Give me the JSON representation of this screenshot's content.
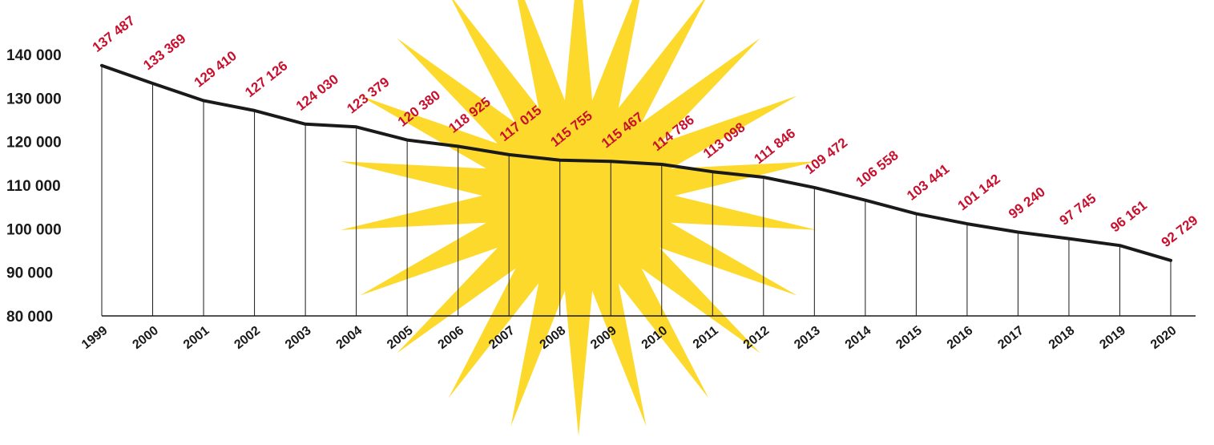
{
  "chart_data": {
    "type": "line",
    "x": [
      "1999",
      "2000",
      "2001",
      "2002",
      "2003",
      "2004",
      "2005",
      "2006",
      "2007",
      "2008",
      "2009",
      "2010",
      "2011",
      "2012",
      "2013",
      "2014",
      "2015",
      "2016",
      "2017",
      "2018",
      "2019",
      "2020"
    ],
    "values": [
      137487,
      133369,
      129410,
      127126,
      124030,
      123379,
      120380,
      118925,
      117015,
      115755,
      115467,
      114786,
      113098,
      111846,
      109472,
      106558,
      103441,
      101142,
      99240,
      97745,
      96161,
      92729
    ],
    "data_labels": [
      "137 487",
      "133 369",
      "129 410",
      "127 126",
      "124 030",
      "123 379",
      "120 380",
      "118 925",
      "117 015",
      "115 755",
      "115 467",
      "114 786",
      "113 098",
      "111 846",
      "109 472",
      "106 558",
      "103 441",
      "101 142",
      "99 240",
      "97 745",
      "96 161",
      "92 729"
    ],
    "yticks": [
      "80 000",
      "90 000",
      "100 000",
      "110 000",
      "120 000",
      "130 000",
      "140 000"
    ],
    "ytick_values": [
      80000,
      90000,
      100000,
      110000,
      120000,
      130000,
      140000
    ],
    "ylim": [
      80000,
      140000
    ],
    "grid": false,
    "legend": "none",
    "title": "",
    "xlabel": "",
    "ylabel": "",
    "colors": {
      "line": "#1a1a1a",
      "data_label": "#c8102e",
      "sun": "#fcd92b",
      "axis": "#1a1a1a"
    },
    "decoration": "sun-burst-icon"
  }
}
